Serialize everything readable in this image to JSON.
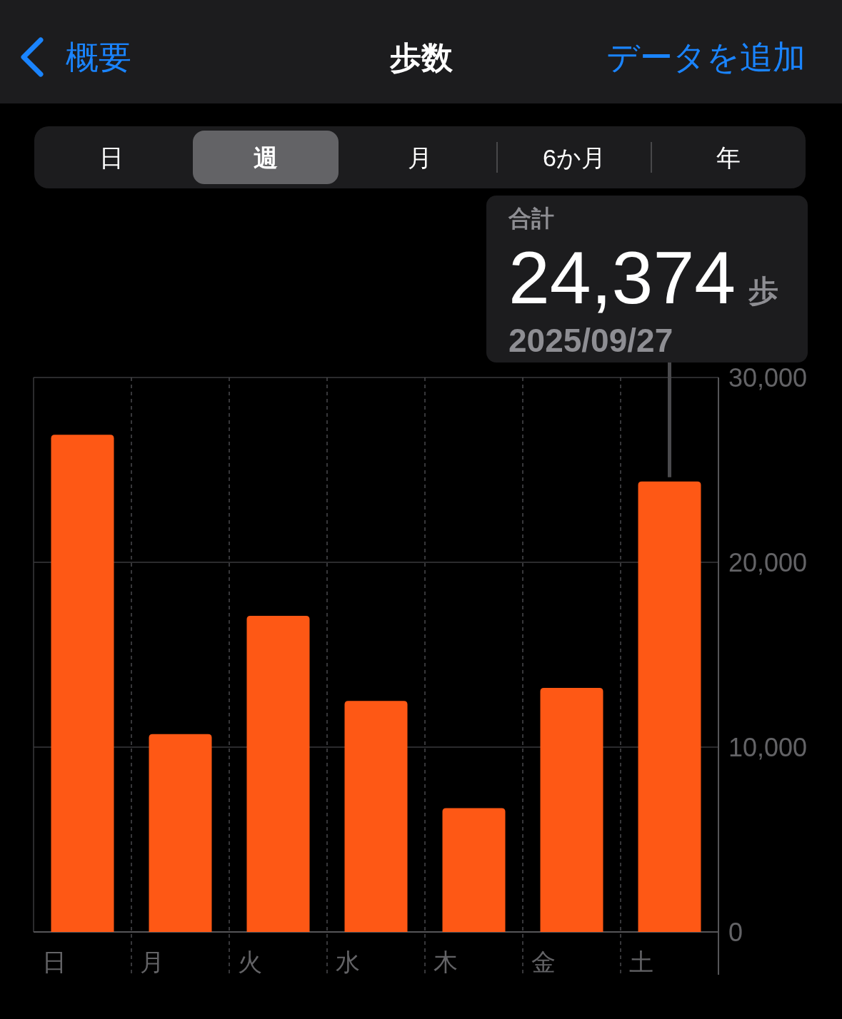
{
  "chart_data": {
    "type": "bar",
    "title": "歩数",
    "categories": [
      "日",
      "月",
      "火",
      "水",
      "木",
      "金",
      "土"
    ],
    "values": [
      26900,
      10700,
      17100,
      12500,
      6700,
      13200,
      24374
    ],
    "color": "#fe5815",
    "ylim": [
      0,
      30000
    ],
    "yticks": [
      0,
      {
        "value": 10000,
        "label": "10,000"
      },
      {
        "value": 20000,
        "label": "20,000"
      },
      {
        "value": 30000,
        "label": "30,000"
      }
    ],
    "grid": true,
    "annotations": [
      "概要",
      "データを追加",
      "日",
      "週",
      "月",
      "6か月",
      "年",
      "合計",
      {
        "text": "24,374",
        "x": "土",
        "y": 24374
      },
      "歩",
      "2025/09/27"
    ]
  }
}
